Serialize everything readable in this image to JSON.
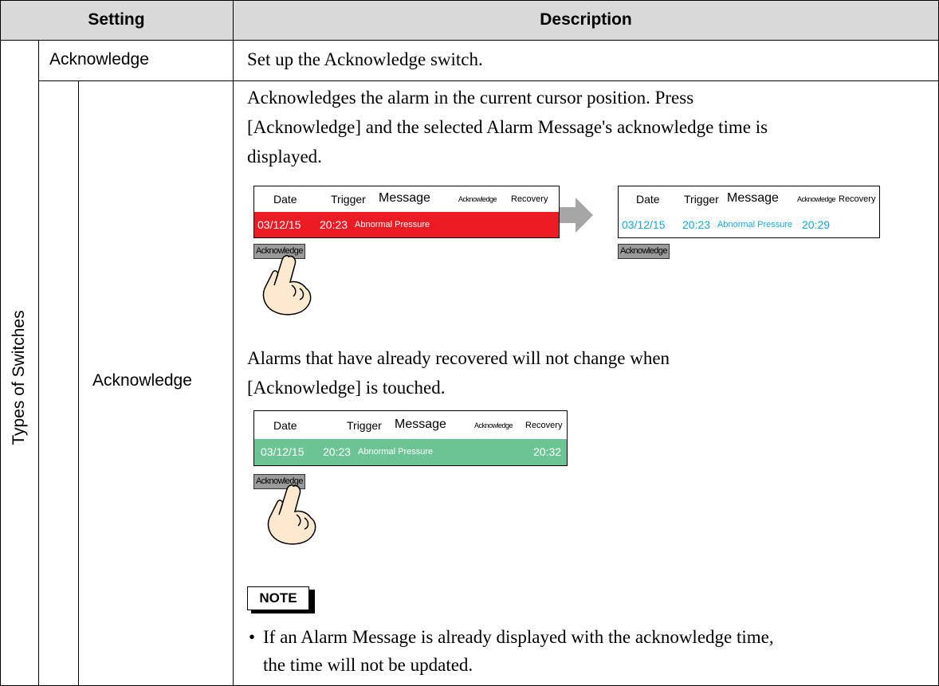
{
  "header": {
    "setting": "Setting",
    "description": "Description"
  },
  "group": "Types of Switches",
  "rows": [
    {
      "setting": "Acknowledge",
      "description": "Set up the Acknowledge switch."
    },
    {
      "setting": "Acknowledge",
      "intro_lines": [
        "Acknowledges the alarm in the current cursor position. Press",
        "[Acknowledge] and the selected Alarm Message's acknowledge time is",
        "displayed."
      ],
      "figures": [
        {
          "columns": [
            "Date",
            "Trigger",
            "Message",
            "Acknowledge",
            "Recovery"
          ],
          "row": {
            "date": "03/12/15",
            "trigger": "20:23",
            "message": "Abnormal Pressure"
          },
          "button": "Acknowledge"
        },
        {
          "columns": [
            "Date",
            "Trigger",
            "Message",
            "Acknowledge",
            "Recovery"
          ],
          "row": {
            "date": "03/12/15",
            "trigger": "20:23",
            "message": "Abnormal Pressure",
            "acknowledge": "20:29"
          },
          "button": "Acknowledge"
        },
        {
          "columns": [
            "Date",
            "Trigger",
            "Message",
            "Acknowledge",
            "Recovery"
          ],
          "row": {
            "date": "03/12/15",
            "trigger": "20:23",
            "message": "Abnormal Pressure",
            "recovery": "20:32"
          },
          "button": "Acknowledge"
        }
      ],
      "recovered_lines": [
        "Alarms that have already recovered will not change when",
        "[Acknowledge] is touched."
      ],
      "note": {
        "label": "NOTE",
        "items": [
          {
            "lines": [
              "If an Alarm Message is already displayed with the acknowledge time,",
              "the time will not be updated."
            ]
          }
        ]
      }
    }
  ]
}
